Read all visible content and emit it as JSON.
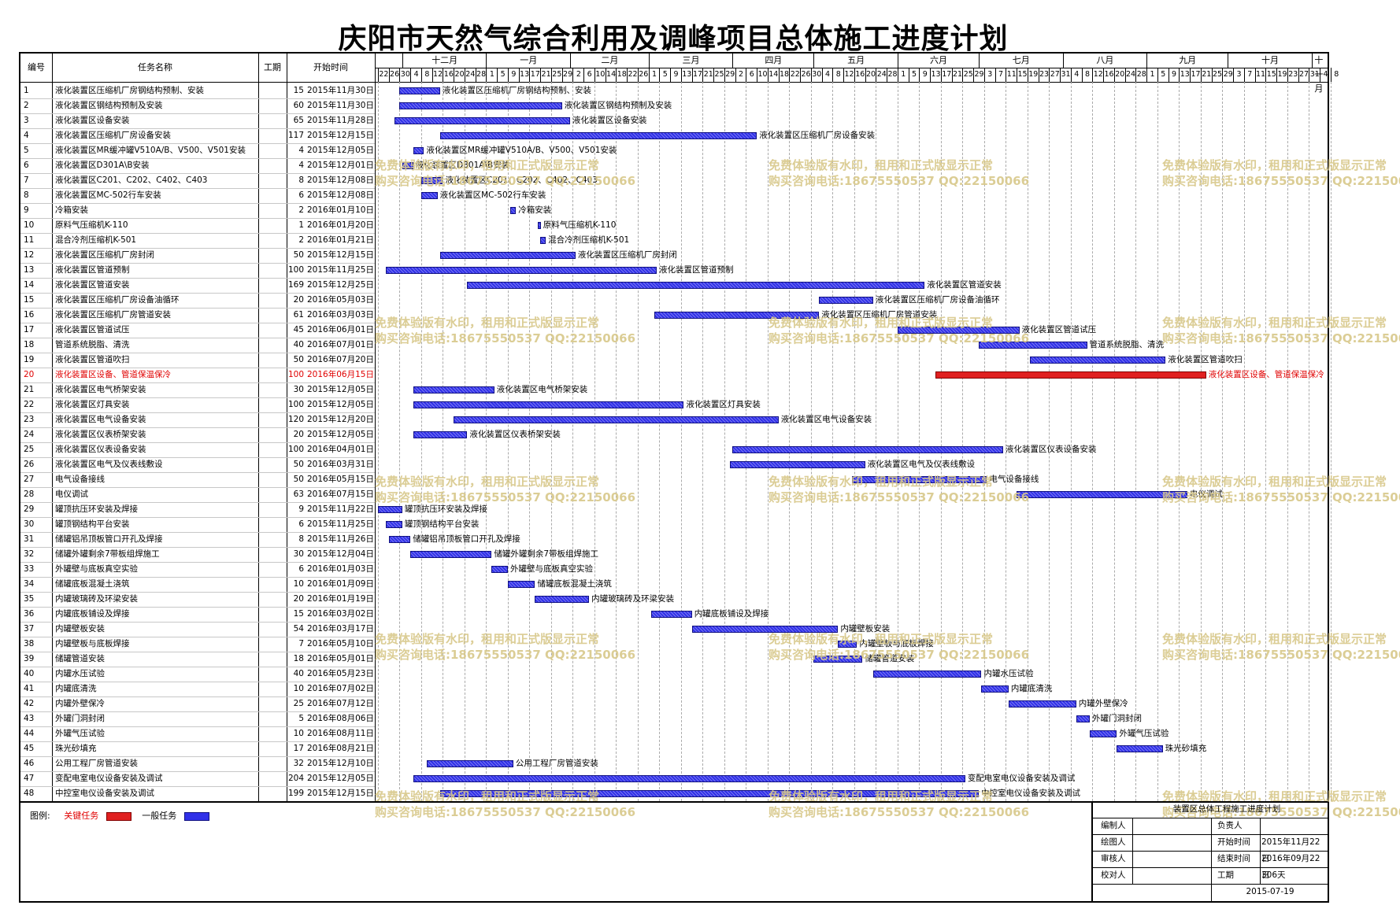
{
  "title": "庆阳市天然气综合利用及调峰项目总体施工进度计划",
  "columns": {
    "id": "编号",
    "name": "任务名称",
    "duration": "工期",
    "start": "开始时间"
  },
  "months": [
    "十二月",
    "一月",
    "二月",
    "三月",
    "四月",
    "五月",
    "六月",
    "七月",
    "八月",
    "九月",
    "十月",
    "十一月"
  ],
  "ticks": [
    "22",
    "26",
    "30",
    "4",
    "8",
    "12",
    "16",
    "20",
    "24",
    "28",
    "1",
    "5",
    "9",
    "13",
    "17",
    "21",
    "25",
    "29",
    "2",
    "6",
    "10",
    "14",
    "18",
    "22",
    "26",
    "1",
    "5",
    "9",
    "13",
    "17",
    "21",
    "25",
    "29",
    "2",
    "6",
    "10",
    "14",
    "18",
    "22",
    "26",
    "30",
    "4",
    "8",
    "12",
    "16",
    "20",
    "24",
    "28",
    "1",
    "5",
    "9",
    "13",
    "17",
    "21",
    "25",
    "29",
    "3",
    "7",
    "11",
    "15",
    "19",
    "23",
    "27",
    "31",
    "4",
    "8",
    "12",
    "16",
    "20",
    "24",
    "28",
    "1",
    "5",
    "9",
    "13",
    "17",
    "21",
    "25",
    "29",
    "3",
    "7",
    "11",
    "15",
    "19",
    "23",
    "27",
    "31",
    "4",
    "8"
  ],
  "tasks": [
    {
      "id": "1",
      "name": "液化装置区压缩机厂房钢结构预制、安装",
      "dur": "15",
      "start": "2015年11月30日",
      "s": 8,
      "d": 15,
      "critical": false
    },
    {
      "id": "2",
      "name": "液化装置区钢结构预制及安装",
      "dur": "60",
      "start": "2015年11月30日",
      "s": 8,
      "d": 60,
      "critical": false
    },
    {
      "id": "3",
      "name": "液化装置区设备安装",
      "dur": "65",
      "start": "2015年11月28日",
      "s": 6,
      "d": 65,
      "critical": false
    },
    {
      "id": "4",
      "name": "液化装置区压缩机厂房设备安装",
      "dur": "117",
      "start": "2015年12月15日",
      "s": 23,
      "d": 117,
      "critical": false
    },
    {
      "id": "5",
      "name": "液化装置区MR缓冲罐V510A/B、V500、V501安装",
      "dur": "4",
      "start": "2015年12月05日",
      "s": 13,
      "d": 4,
      "critical": false
    },
    {
      "id": "6",
      "name": "液化装置区D301A\\B安装",
      "dur": "4",
      "start": "2015年12月01日",
      "s": 9,
      "d": 4,
      "critical": false
    },
    {
      "id": "7",
      "name": "液化装置区C201、C202、C402、C403",
      "dur": "8",
      "start": "2015年12月08日",
      "s": 16,
      "d": 8,
      "critical": false
    },
    {
      "id": "8",
      "name": "液化装置区MC-502行车安装",
      "dur": "6",
      "start": "2015年12月08日",
      "s": 16,
      "d": 6,
      "critical": false
    },
    {
      "id": "9",
      "name": "冷箱安装",
      "dur": "2",
      "start": "2016年01月10日",
      "s": 49,
      "d": 2,
      "critical": false
    },
    {
      "id": "10",
      "name": "原料气压缩机K-110",
      "dur": "1",
      "start": "2016年01月20日",
      "s": 59,
      "d": 1,
      "critical": false
    },
    {
      "id": "11",
      "name": "混合冷剂压缩机K-501",
      "dur": "2",
      "start": "2016年01月21日",
      "s": 60,
      "d": 2,
      "critical": false
    },
    {
      "id": "12",
      "name": "液化装置区压缩机厂房封闭",
      "dur": "50",
      "start": "2015年12月15日",
      "s": 23,
      "d": 50,
      "critical": false
    },
    {
      "id": "13",
      "name": "液化装置区管道预制",
      "dur": "100",
      "start": "2015年11月25日",
      "s": 3,
      "d": 100,
      "critical": false
    },
    {
      "id": "14",
      "name": "液化装置区管道安装",
      "dur": "169",
      "start": "2015年12月25日",
      "s": 33,
      "d": 169,
      "critical": false
    },
    {
      "id": "15",
      "name": "液化装置区压缩机厂房设备油循环",
      "dur": "20",
      "start": "2016年05月03日",
      "s": 163,
      "d": 20,
      "critical": false
    },
    {
      "id": "16",
      "name": "液化装置区压缩机厂房管道安装",
      "dur": "61",
      "start": "2016年03月03日",
      "s": 102,
      "d": 61,
      "critical": false
    },
    {
      "id": "17",
      "name": "液化装置区管道试压",
      "dur": "45",
      "start": "2016年06月01日",
      "s": 192,
      "d": 45,
      "critical": false
    },
    {
      "id": "18",
      "name": "管道系统脱脂、清洗",
      "dur": "40",
      "start": "2016年07月01日",
      "s": 222,
      "d": 40,
      "critical": false
    },
    {
      "id": "19",
      "name": "液化装置区管道吹扫",
      "dur": "50",
      "start": "2016年07月20日",
      "s": 241,
      "d": 50,
      "critical": false
    },
    {
      "id": "20",
      "name": "液化装置区设备、管道保温保冷",
      "dur": "100",
      "start": "2016年06月15日",
      "s": 206,
      "d": 100,
      "critical": true
    },
    {
      "id": "21",
      "name": "液化装置区电气桥架安装",
      "dur": "30",
      "start": "2015年12月05日",
      "s": 13,
      "d": 30,
      "critical": false
    },
    {
      "id": "22",
      "name": "液化装置区灯具安装",
      "dur": "100",
      "start": "2015年12月05日",
      "s": 13,
      "d": 100,
      "critical": false
    },
    {
      "id": "23",
      "name": "液化装置区电气设备安装",
      "dur": "120",
      "start": "2015年12月20日",
      "s": 28,
      "d": 120,
      "critical": false
    },
    {
      "id": "24",
      "name": "液化装置区仪表桥架安装",
      "dur": "20",
      "start": "2015年12月05日",
      "s": 13,
      "d": 20,
      "critical": false
    },
    {
      "id": "25",
      "name": "液化装置区仪表设备安装",
      "dur": "100",
      "start": "2016年04月01日",
      "s": 131,
      "d": 100,
      "critical": false
    },
    {
      "id": "26",
      "name": "液化装置区电气及仪表线敷设",
      "dur": "50",
      "start": "2016年03月31日",
      "s": 130,
      "d": 50,
      "critical": false
    },
    {
      "id": "27",
      "name": "电气设备接线",
      "dur": "50",
      "start": "2016年05月15日",
      "s": 175,
      "d": 50,
      "critical": false
    },
    {
      "id": "28",
      "name": "电仪调试",
      "dur": "63",
      "start": "2016年07月15日",
      "s": 236,
      "d": 63,
      "critical": false
    },
    {
      "id": "29",
      "name": "罐顶抗压环安装及焊接",
      "dur": "9",
      "start": "2015年11月22日",
      "s": 0,
      "d": 9,
      "critical": false
    },
    {
      "id": "30",
      "name": "罐顶钢结构平台安装",
      "dur": "6",
      "start": "2015年11月25日",
      "s": 3,
      "d": 6,
      "critical": false
    },
    {
      "id": "31",
      "name": "储罐铝吊顶板管口开孔及焊接",
      "dur": "8",
      "start": "2015年11月26日",
      "s": 4,
      "d": 8,
      "critical": false
    },
    {
      "id": "32",
      "name": "储罐外罐剩余7带板组焊施工",
      "dur": "30",
      "start": "2015年12月04日",
      "s": 12,
      "d": 30,
      "critical": false
    },
    {
      "id": "33",
      "name": "外罐壁与底板真空实验",
      "dur": "6",
      "start": "2016年01月03日",
      "s": 42,
      "d": 6,
      "critical": false
    },
    {
      "id": "34",
      "name": "储罐底板混凝土浇筑",
      "dur": "10",
      "start": "2016年01月09日",
      "s": 48,
      "d": 10,
      "critical": false
    },
    {
      "id": "35",
      "name": "内罐玻璃砖及环梁安装",
      "dur": "20",
      "start": "2016年01月19日",
      "s": 58,
      "d": 20,
      "critical": false
    },
    {
      "id": "36",
      "name": "内罐底板铺设及焊接",
      "dur": "15",
      "start": "2016年03月02日",
      "s": 101,
      "d": 15,
      "critical": false
    },
    {
      "id": "37",
      "name": "内罐壁板安装",
      "dur": "54",
      "start": "2016年03月17日",
      "s": 116,
      "d": 54,
      "critical": false
    },
    {
      "id": "38",
      "name": "内罐壁板与底板焊接",
      "dur": "7",
      "start": "2016年05月10日",
      "s": 170,
      "d": 7,
      "critical": false
    },
    {
      "id": "39",
      "name": "储罐管道安装",
      "dur": "18",
      "start": "2016年05月01日",
      "s": 161,
      "d": 18,
      "critical": false
    },
    {
      "id": "40",
      "name": "内罐水压试验",
      "dur": "40",
      "start": "2016年05月23日",
      "s": 183,
      "d": 40,
      "critical": false
    },
    {
      "id": "41",
      "name": "内罐底清洗",
      "dur": "10",
      "start": "2016年07月02日",
      "s": 223,
      "d": 10,
      "critical": false
    },
    {
      "id": "42",
      "name": "内罐外壁保冷",
      "dur": "25",
      "start": "2016年07月12日",
      "s": 233,
      "d": 25,
      "critical": false
    },
    {
      "id": "43",
      "name": "外罐门洞封闭",
      "dur": "5",
      "start": "2016年08月06日",
      "s": 258,
      "d": 5,
      "critical": false
    },
    {
      "id": "44",
      "name": "外罐气压试验",
      "dur": "10",
      "start": "2016年08月11日",
      "s": 263,
      "d": 10,
      "critical": false
    },
    {
      "id": "45",
      "name": "珠光砂填充",
      "dur": "17",
      "start": "2016年08月21日",
      "s": 273,
      "d": 17,
      "critical": false
    },
    {
      "id": "46",
      "name": "公用工程厂房管道安装",
      "dur": "32",
      "start": "2015年12月10日",
      "s": 18,
      "d": 32,
      "critical": false
    },
    {
      "id": "47",
      "name": "变配电室电仪设备安装及调试",
      "dur": "204",
      "start": "2015年12月05日",
      "s": 13,
      "d": 204,
      "critical": false
    },
    {
      "id": "48",
      "name": "中控室电仪设备安装及调试",
      "dur": "199",
      "start": "2015年12月15日",
      "s": 23,
      "d": 199,
      "critical": false
    }
  ],
  "watermark": {
    "line1": "免费体验版有水印，租用和正式版显示正常",
    "line2": "购买咨询电话:18675550537 QQ:22150066"
  },
  "legend": {
    "label": "图例:",
    "critical": "关键任务",
    "normal": "一般任务",
    "critical_color": "#e02020",
    "normal_color": "#3030e8"
  },
  "sign": {
    "caption": "装置区总体工程施工进度计划",
    "rows": [
      {
        "a": "编制人",
        "b": "",
        "c": "负责人",
        "d": ""
      },
      {
        "a": "绘图人",
        "b": "",
        "c": "开始时间",
        "d": "2015年11月22日"
      },
      {
        "a": "审核人",
        "b": "",
        "c": "结束时间",
        "d": "2016年09月22日"
      },
      {
        "a": "校对人",
        "b": "",
        "c": "工期",
        "d": "306天"
      }
    ],
    "date": "2015-07-19"
  }
}
